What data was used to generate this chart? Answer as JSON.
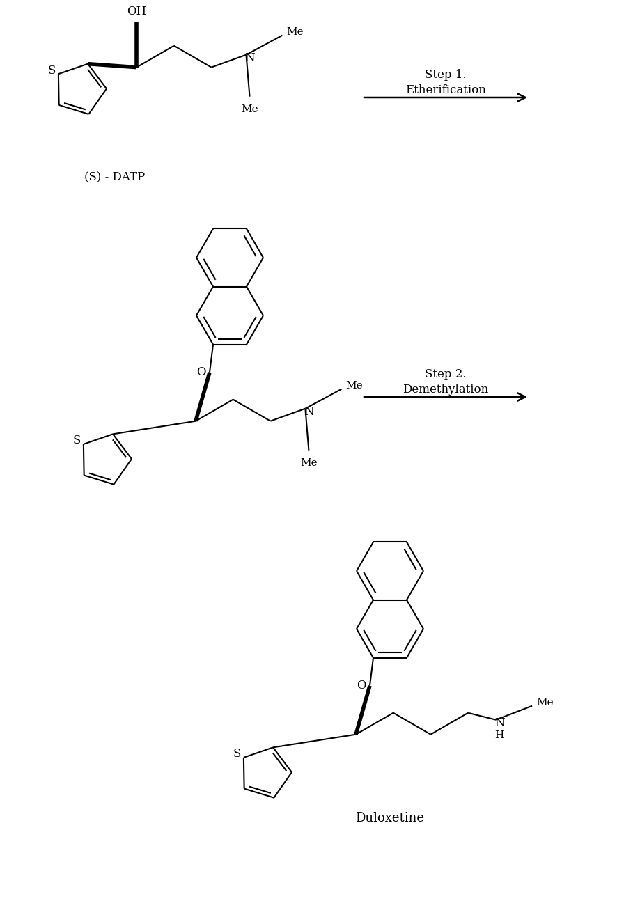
{
  "bg_color": "#ffffff",
  "line_color": "#000000",
  "lw": 1.5,
  "blw": 4.0,
  "fig_width": 8.96,
  "fig_height": 13.04,
  "step1_label1": "Step 1.",
  "step1_label2": "Etherification",
  "step2_label1": "Step 2.",
  "step2_label2": "Demethylation",
  "label_datp": "(S) - DATP",
  "label_duloxetine": "Duloxetine",
  "fs": 12,
  "afs": 11
}
